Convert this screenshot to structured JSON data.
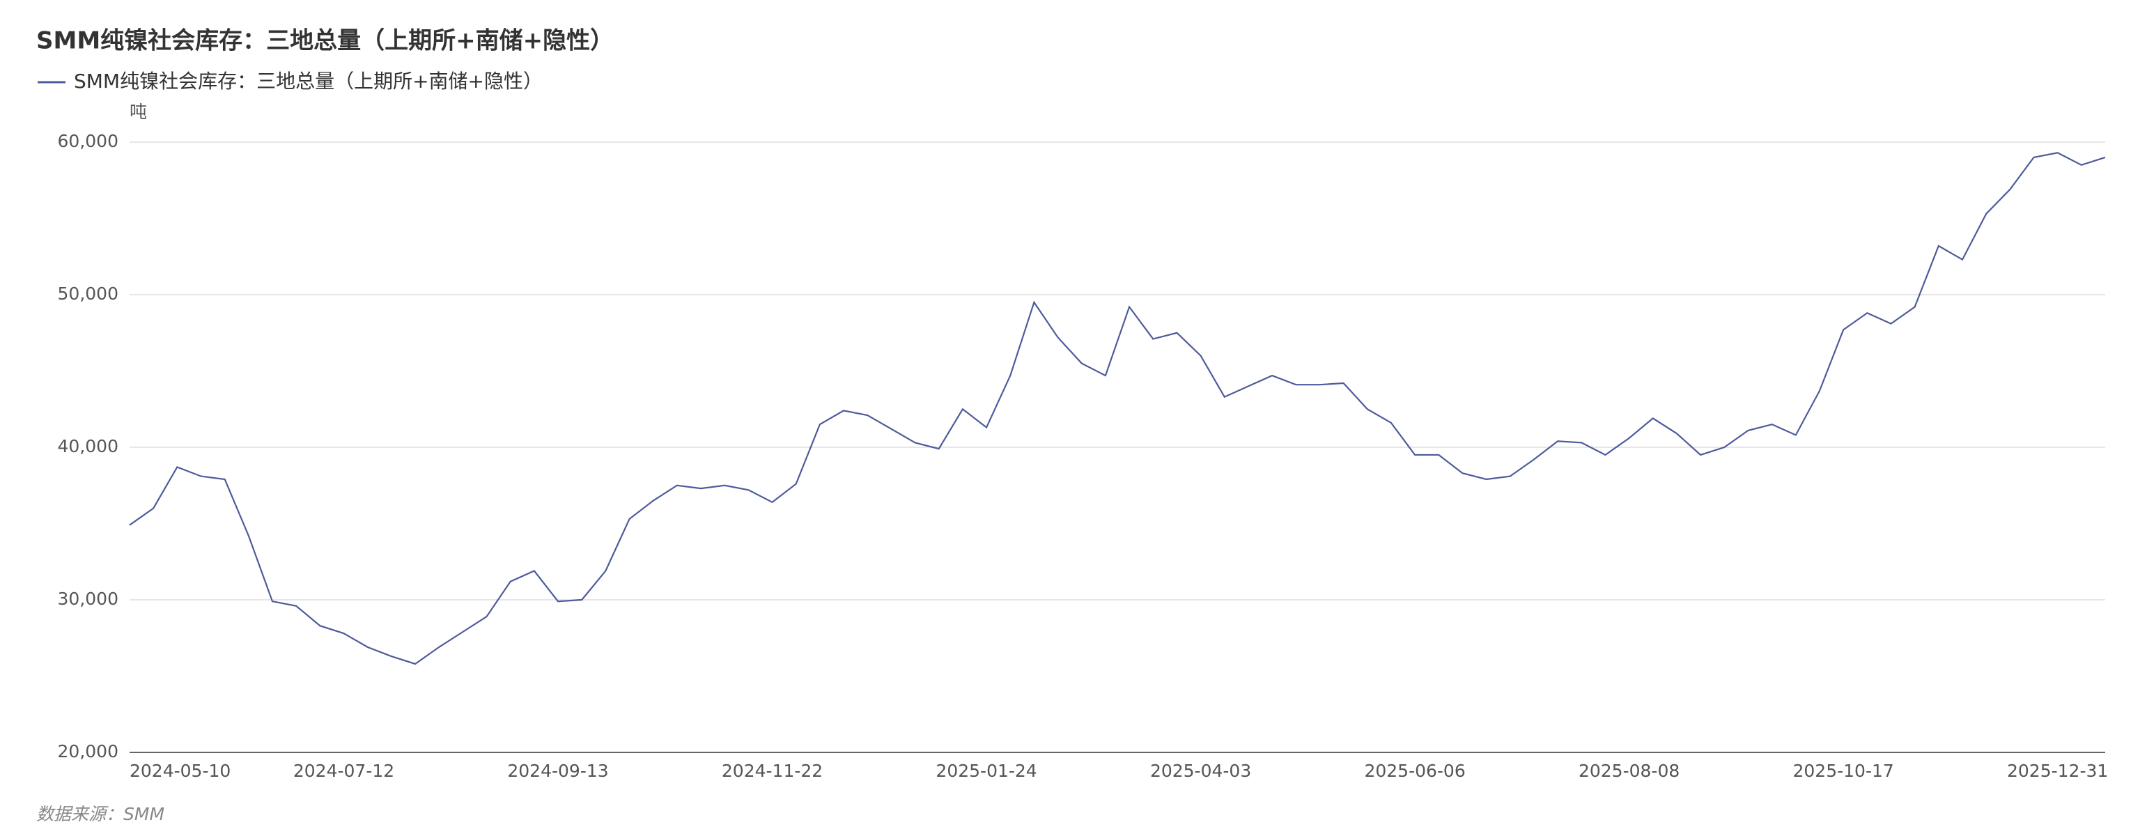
{
  "chart_data": {
    "type": "line",
    "title": "SMM纯镍社会库存：三地总量（上期所+南储+隐性）",
    "y_label": "吨",
    "source": "数据来源：SMM",
    "categories": [
      "2024-05-10",
      null,
      null,
      null,
      null,
      null,
      null,
      null,
      null,
      "2024-07-12",
      null,
      null,
      null,
      null,
      null,
      null,
      null,
      null,
      "2024-09-13",
      null,
      null,
      null,
      null,
      null,
      null,
      null,
      null,
      "2024-11-22",
      null,
      null,
      null,
      null,
      null,
      null,
      null,
      null,
      "2025-01-24",
      null,
      null,
      null,
      null,
      null,
      null,
      null,
      null,
      "2025-04-03",
      null,
      null,
      null,
      null,
      null,
      null,
      null,
      null,
      "2025-06-06",
      null,
      null,
      null,
      null,
      null,
      null,
      null,
      null,
      "2025-08-08",
      null,
      null,
      null,
      null,
      null,
      null,
      null,
      null,
      "2025-10-17",
      null,
      null,
      null,
      null,
      null,
      null,
      null,
      null,
      "2025-12-31",
      null,
      null
    ],
    "series": [
      {
        "name": "SMM纯镍社会库存：三地总量（上期所+南储+隐性）",
        "color": "#4e5b9b",
        "values": [
          34900,
          36000,
          38700,
          38100,
          37900,
          34200,
          29900,
          29600,
          28300,
          27800,
          26900,
          26300,
          25800,
          26900,
          27900,
          28900,
          31200,
          31900,
          29900,
          30000,
          31900,
          35300,
          36500,
          37500,
          37300,
          37500,
          37200,
          36400,
          37600,
          41500,
          42400,
          42100,
          41200,
          40300,
          39900,
          42500,
          41300,
          44700,
          49500,
          47200,
          45500,
          44700,
          49200,
          47100,
          47500,
          46000,
          43300,
          44000,
          44700,
          44100,
          44100,
          44200,
          42500,
          41600,
          39500,
          39500,
          38300,
          37900,
          38100,
          39200,
          40400,
          40300,
          39500,
          40600,
          41900,
          40900,
          39500,
          40000,
          41100,
          41500,
          40800,
          43700,
          47700,
          48800,
          48100,
          49200,
          53200,
          52300,
          55300,
          56900,
          59000,
          59300,
          58500,
          59000
        ]
      }
    ],
    "ylim": [
      20000,
      60000
    ],
    "yticks": [
      {
        "value": 20000,
        "label": "20,000"
      },
      {
        "value": 30000,
        "label": "30,000"
      },
      {
        "value": 40000,
        "label": "40,000"
      },
      {
        "value": 50000,
        "label": "50,000"
      },
      {
        "value": 60000,
        "label": "60,000"
      }
    ],
    "grid": true
  }
}
